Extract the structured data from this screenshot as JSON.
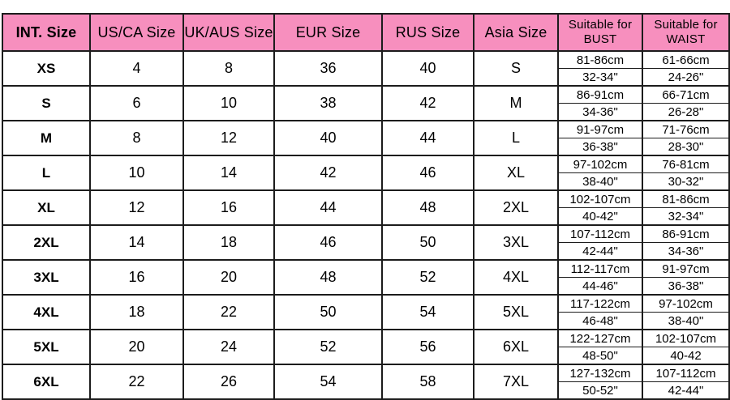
{
  "chart_data": {
    "type": "table",
    "headers": {
      "int_size": "INT. Size",
      "us_ca": "US/CA Size",
      "uk_aus": "UK/AUS Size",
      "eur": "EUR Size",
      "rus": "RUS Size",
      "asia": "Asia Size",
      "suitable_for": "Suitable for",
      "bust": "BUST",
      "waist": "WAIST"
    },
    "rows": [
      {
        "int_size": "XS",
        "us_ca": "4",
        "uk_aus": "8",
        "eur": "36",
        "rus": "40",
        "asia": "S",
        "bust_cm": "81-86cm",
        "bust_in": "32-34\"",
        "waist_cm": "61-66cm",
        "waist_in": "24-26\""
      },
      {
        "int_size": "S",
        "us_ca": "6",
        "uk_aus": "10",
        "eur": "38",
        "rus": "42",
        "asia": "M",
        "bust_cm": "86-91cm",
        "bust_in": "34-36\"",
        "waist_cm": "66-71cm",
        "waist_in": "26-28\""
      },
      {
        "int_size": "M",
        "us_ca": "8",
        "uk_aus": "12",
        "eur": "40",
        "rus": "44",
        "asia": "L",
        "bust_cm": "91-97cm",
        "bust_in": "36-38\"",
        "waist_cm": "71-76cm",
        "waist_in": "28-30\""
      },
      {
        "int_size": "L",
        "us_ca": "10",
        "uk_aus": "14",
        "eur": "42",
        "rus": "46",
        "asia": "XL",
        "bust_cm": "97-102cm",
        "bust_in": "38-40\"",
        "waist_cm": "76-81cm",
        "waist_in": "30-32\""
      },
      {
        "int_size": "XL",
        "us_ca": "12",
        "uk_aus": "16",
        "eur": "44",
        "rus": "48",
        "asia": "2XL",
        "bust_cm": "102-107cm",
        "bust_in": "40-42\"",
        "waist_cm": "81-86cm",
        "waist_in": "32-34\""
      },
      {
        "int_size": "2XL",
        "us_ca": "14",
        "uk_aus": "18",
        "eur": "46",
        "rus": "50",
        "asia": "3XL",
        "bust_cm": "107-112cm",
        "bust_in": "42-44\"",
        "waist_cm": "86-91cm",
        "waist_in": "34-36\""
      },
      {
        "int_size": "3XL",
        "us_ca": "16",
        "uk_aus": "20",
        "eur": "48",
        "rus": "52",
        "asia": "4XL",
        "bust_cm": "112-117cm",
        "bust_in": "44-46\"",
        "waist_cm": "91-97cm",
        "waist_in": "36-38\""
      },
      {
        "int_size": "4XL",
        "us_ca": "18",
        "uk_aus": "22",
        "eur": "50",
        "rus": "54",
        "asia": "5XL",
        "bust_cm": "117-122cm",
        "bust_in": "46-48\"",
        "waist_cm": "97-102cm",
        "waist_in": "38-40\""
      },
      {
        "int_size": "5XL",
        "us_ca": "20",
        "uk_aus": "24",
        "eur": "52",
        "rus": "56",
        "asia": "6XL",
        "bust_cm": "122-127cm",
        "bust_in": "48-50\"",
        "waist_cm": "102-107cm",
        "waist_in": "40-42"
      },
      {
        "int_size": "6XL",
        "us_ca": "22",
        "uk_aus": "26",
        "eur": "54",
        "rus": "58",
        "asia": "7XL",
        "bust_cm": "127-132cm",
        "bust_in": "50-52\"",
        "waist_cm": "107-112cm",
        "waist_in": "42-44\""
      }
    ],
    "colors": {
      "header_bg": "#F78FBE",
      "border": "#1C1C1C",
      "row_bg": "#FFFFFF",
      "text": "#000000"
    },
    "layout": {
      "grid": "on",
      "header_row": "top",
      "sub_rows": [
        "cm",
        "inches"
      ]
    }
  }
}
